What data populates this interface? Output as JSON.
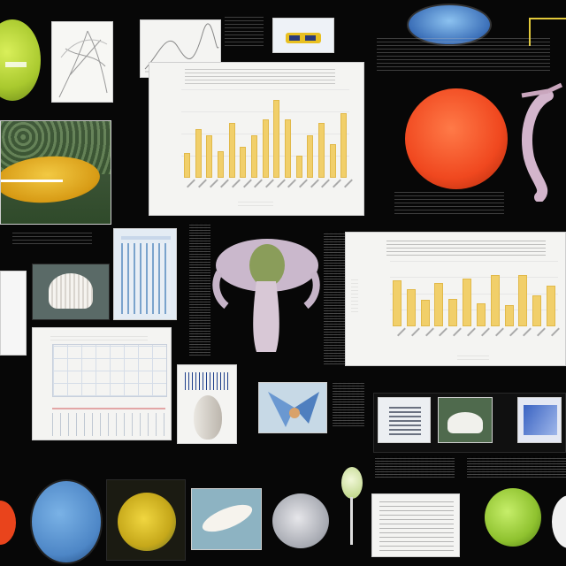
{
  "collage": {
    "chart_top": {},
    "chart_right": {},
    "table_chart": {}
  },
  "colors": {
    "background": "#070707",
    "bar_fill": "#f1cf6a",
    "orange_sphere": "#f2552a",
    "blue_disc": "#5b95cf",
    "green_sphere": "#9ccf3a",
    "yellow_leaf": "#e6b52a"
  },
  "icons": [
    "leaf-icon",
    "mushroom-illustration",
    "flower-illustration",
    "seed-illustration",
    "lizard-illustration"
  ],
  "chart_data": [
    {
      "type": "bar",
      "categories": [
        "1",
        "2",
        "3",
        "4",
        "5",
        "6",
        "7",
        "8",
        "9",
        "10",
        "11",
        "12",
        "13",
        "14",
        "15"
      ],
      "values": [
        28,
        55,
        48,
        30,
        62,
        35,
        48,
        66,
        88,
        66,
        25,
        48,
        62,
        38,
        73
      ],
      "title": "",
      "xlabel": "",
      "ylabel": "",
      "ylim": [
        0,
        100
      ],
      "grid": true
    },
    {
      "type": "bar",
      "categories": [
        "1",
        "2",
        "3",
        "4",
        "5",
        "6",
        "7",
        "8",
        "9",
        "10",
        "11",
        "12"
      ],
      "values": [
        56,
        45,
        32,
        53,
        33,
        58,
        28,
        63,
        26,
        63,
        38,
        50
      ],
      "title": "",
      "xlabel": "",
      "ylabel": "",
      "ylim": [
        0,
        80
      ],
      "grid": true
    }
  ]
}
